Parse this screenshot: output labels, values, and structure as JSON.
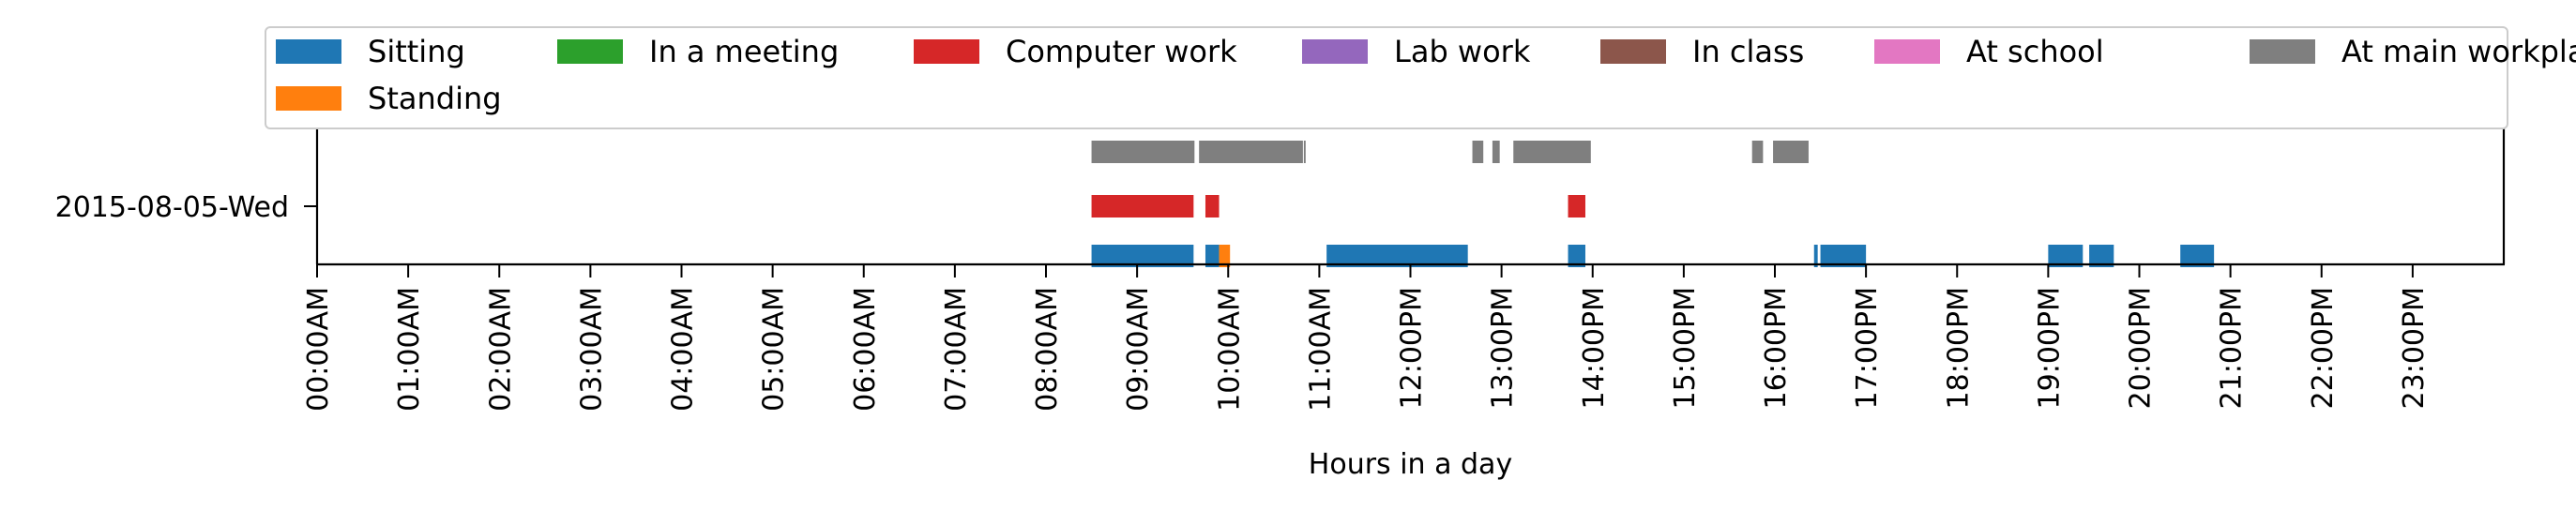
{
  "chart_data": {
    "type": "timeline",
    "xlabel": "Hours in a day",
    "xlim": [
      0,
      24
    ],
    "row_labels": [
      "2015-08-05-Wed"
    ],
    "x_ticks": [
      "00:00AM",
      "01:00AM",
      "02:00AM",
      "03:00AM",
      "04:00AM",
      "05:00AM",
      "06:00AM",
      "07:00AM",
      "08:00AM",
      "09:00AM",
      "10:00AM",
      "11:00AM",
      "12:00PM",
      "13:00PM",
      "14:00PM",
      "15:00PM",
      "16:00PM",
      "17:00PM",
      "18:00PM",
      "19:00PM",
      "20:00PM",
      "21:00PM",
      "22:00PM",
      "23:00PM"
    ],
    "legend_position": "top",
    "series": [
      {
        "name": "Sitting",
        "color": "#1f77b4",
        "lane": 0,
        "intervals": [
          [
            8.5,
            9.62
          ],
          [
            9.75,
            9.9
          ],
          [
            11.08,
            12.63
          ],
          [
            13.73,
            13.92
          ],
          [
            16.43,
            16.47
          ],
          [
            16.5,
            17.0
          ],
          [
            19.0,
            19.38
          ],
          [
            19.45,
            19.72
          ],
          [
            20.45,
            20.82
          ]
        ]
      },
      {
        "name": "Standing",
        "color": "#ff7f0e",
        "lane": 0,
        "intervals": [
          [
            9.9,
            10.02
          ]
        ]
      },
      {
        "name": "In a meeting",
        "color": "#2ca02c",
        "lane": 2,
        "intervals": []
      },
      {
        "name": "Computer work",
        "color": "#d62728",
        "lane": 1,
        "intervals": [
          [
            8.5,
            9.62
          ],
          [
            9.75,
            9.9
          ],
          [
            13.73,
            13.92
          ]
        ]
      },
      {
        "name": "Lab work",
        "color": "#9467bd",
        "lane": 2,
        "intervals": []
      },
      {
        "name": "In class",
        "color": "#8c564b",
        "lane": 2,
        "intervals": []
      },
      {
        "name": "At school",
        "color": "#e377c2",
        "lane": 2,
        "intervals": []
      },
      {
        "name": "At main workplace",
        "color": "#7f7f7f",
        "lane": 2,
        "intervals": [
          [
            8.5,
            9.63
          ],
          [
            9.68,
            10.82
          ],
          [
            10.83,
            10.85
          ],
          [
            12.68,
            12.8
          ],
          [
            12.9,
            12.98
          ],
          [
            13.13,
            13.98
          ],
          [
            15.75,
            15.87
          ],
          [
            15.98,
            16.37
          ]
        ]
      }
    ]
  }
}
